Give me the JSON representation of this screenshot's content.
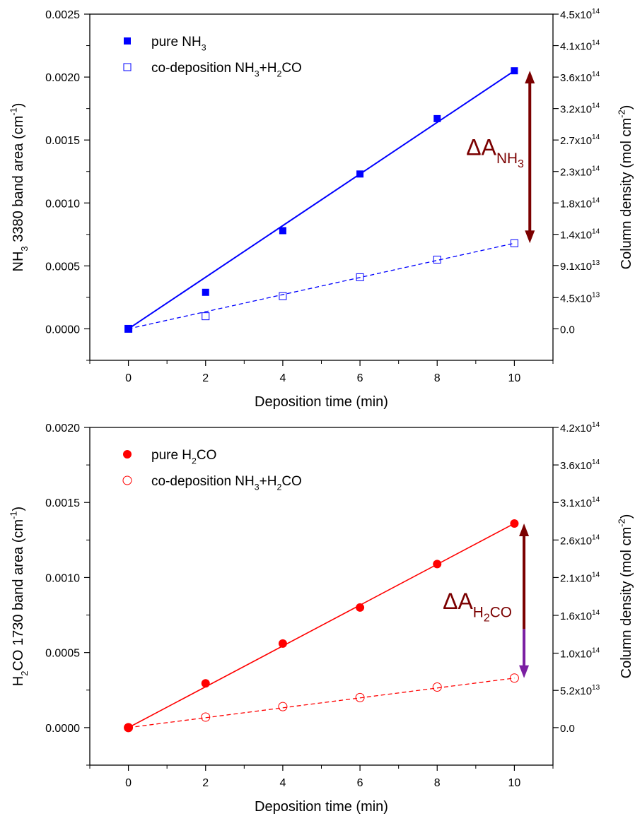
{
  "chart_data": [
    {
      "type": "scatter",
      "xlabel": "Deposition time (min)",
      "ylabel": "NH3 3380 band area (cm-1)",
      "ylabel_parts": [
        {
          "t": "NH",
          "s": "n"
        },
        {
          "t": "3",
          "s": "sub"
        },
        {
          "t": " 3380 band area (cm",
          "s": "n"
        },
        {
          "t": "-1",
          "s": "sup"
        },
        {
          "t": ")",
          "s": "n"
        }
      ],
      "y2label": "Column density (mol cm-2)",
      "y2label_parts": [
        {
          "t": "Column density (mol cm",
          "s": "n"
        },
        {
          "t": "-2",
          "s": "sup"
        },
        {
          "t": ")",
          "s": "n"
        }
      ],
      "xlim": [
        -1,
        11
      ],
      "ylim": [
        -0.00025,
        0.0025
      ],
      "xticks": [
        0,
        2,
        4,
        6,
        8,
        10
      ],
      "xtick_labels": [
        "0",
        "2",
        "4",
        "6",
        "8",
        "10"
      ],
      "yticks": [
        0,
        0.0005,
        0.001,
        0.0015,
        0.002,
        0.0025
      ],
      "ytick_labels": [
        "0.0000",
        "0.0005",
        "0.0010",
        "0.0015",
        "0.0020",
        "0.0025"
      ],
      "y2ticks": [
        {
          "value": 0,
          "mant": "0.0",
          "exp": ""
        },
        {
          "value": 0.000248,
          "mant": "4.5x10",
          "exp": "13"
        },
        {
          "value": 0.000503,
          "mant": "9.1x10",
          "exp": "13"
        },
        {
          "value": 0.000751,
          "mant": "1.4x10",
          "exp": "14"
        },
        {
          "value": 0.001,
          "mant": "1.8x10",
          "exp": "14"
        },
        {
          "value": 0.00125,
          "mant": "2.3x10",
          "exp": "14"
        },
        {
          "value": 0.0015,
          "mant": "2.7x10",
          "exp": "14"
        },
        {
          "value": 0.00175,
          "mant": "3.2x10",
          "exp": "14"
        },
        {
          "value": 0.002,
          "mant": "3.6x10",
          "exp": "14"
        },
        {
          "value": 0.00225,
          "mant": "4.1x10",
          "exp": "14"
        },
        {
          "value": 0.0025,
          "mant": "4.5x10",
          "exp": "14"
        }
      ],
      "legend_position": "top-left",
      "series": [
        {
          "name": "pure NH3",
          "name_parts": [
            {
              "t": "pure NH",
              "s": "n"
            },
            {
              "t": "3",
              "s": "sub"
            }
          ],
          "marker": "square-filled",
          "color": "#0000ff",
          "x": [
            0,
            2,
            4,
            6,
            8,
            10
          ],
          "y": [
            0.0,
            0.00029,
            0.00078,
            0.00123,
            0.00167,
            0.00205
          ],
          "fit": {
            "style": "solid",
            "x": [
              0,
              10
            ],
            "y": [
              0.0,
              0.00205
            ]
          }
        },
        {
          "name": "co-deposition NH3+H2CO",
          "name_parts": [
            {
              "t": "co-deposition NH",
              "s": "n"
            },
            {
              "t": "3",
              "s": "sub"
            },
            {
              "t": "+H",
              "s": "n"
            },
            {
              "t": "2",
              "s": "sub"
            },
            {
              "t": "CO",
              "s": "n"
            }
          ],
          "marker": "square-open",
          "color": "#0000ff",
          "x": [
            0,
            2,
            4,
            6,
            8,
            10
          ],
          "y": [
            0.0,
            0.0001,
            0.00026,
            0.00041,
            0.00055,
            0.00068
          ],
          "fit": {
            "style": "dashed",
            "x": [
              0,
              10
            ],
            "y": [
              0.0,
              0.00068
            ]
          }
        }
      ],
      "annotation": {
        "text": "ΔA NH3",
        "parts": [
          {
            "t": "ΔA",
            "s": "n"
          },
          {
            "t": "NH",
            "s": "sub"
          },
          {
            "t": "3",
            "s": "subsub"
          }
        ],
        "color": "#7b0000",
        "x": 10.4,
        "arrow_from": 0.00205,
        "arrow_to": 0.00068
      }
    },
    {
      "type": "scatter",
      "xlabel": "Deposition time (min)",
      "ylabel": "H2CO 1730 band area (cm-1)",
      "ylabel_parts": [
        {
          "t": "H",
          "s": "n"
        },
        {
          "t": "2",
          "s": "sub"
        },
        {
          "t": "CO 1730 band area (cm",
          "s": "n"
        },
        {
          "t": "-1",
          "s": "sup"
        },
        {
          "t": ")",
          "s": "n"
        }
      ],
      "y2label": "Column density (mol cm-2)",
      "y2label_parts": [
        {
          "t": "Column density (mol cm",
          "s": "n"
        },
        {
          "t": "-2",
          "s": "sup"
        },
        {
          "t": ")",
          "s": "n"
        }
      ],
      "xlim": [
        -1,
        11
      ],
      "ylim": [
        -0.00025,
        0.002
      ],
      "xticks": [
        0,
        2,
        4,
        6,
        8,
        10
      ],
      "xtick_labels": [
        "0",
        "2",
        "4",
        "6",
        "8",
        "10"
      ],
      "yticks": [
        0,
        0.0005,
        0.001,
        0.0015,
        0.002
      ],
      "ytick_labels": [
        "0.0000",
        "0.0005",
        "0.0010",
        "0.0015",
        "0.0020"
      ],
      "y2ticks": [
        {
          "value": 0,
          "mant": "0.0",
          "exp": ""
        },
        {
          "value": 0.000248,
          "mant": "5.2x10",
          "exp": "13"
        },
        {
          "value": 0.000496,
          "mant": "1.0x10",
          "exp": "14"
        },
        {
          "value": 0.000748,
          "mant": "1.6x10",
          "exp": "14"
        },
        {
          "value": 0.001,
          "mant": "2.1x10",
          "exp": "14"
        },
        {
          "value": 0.00125,
          "mant": "2.6x10",
          "exp": "14"
        },
        {
          "value": 0.0015,
          "mant": "3.1x10",
          "exp": "14"
        },
        {
          "value": 0.00175,
          "mant": "3.6x10",
          "exp": "14"
        },
        {
          "value": 0.002,
          "mant": "4.2x10",
          "exp": "14"
        }
      ],
      "legend_position": "top-left",
      "series": [
        {
          "name": "pure H2CO",
          "name_parts": [
            {
              "t": "pure H",
              "s": "n"
            },
            {
              "t": "2",
              "s": "sub"
            },
            {
              "t": "CO",
              "s": "n"
            }
          ],
          "marker": "circle-filled",
          "color": "#ff0000",
          "x": [
            0,
            2,
            4,
            6,
            8,
            10
          ],
          "y": [
            0.0,
            0.000295,
            0.00056,
            0.0008,
            0.00109,
            0.00136
          ],
          "fit": {
            "style": "solid",
            "x": [
              0,
              10
            ],
            "y": [
              0.0,
              0.00136
            ]
          }
        },
        {
          "name": "co-deposition NH3+H2CO",
          "name_parts": [
            {
              "t": "co-deposition NH",
              "s": "n"
            },
            {
              "t": "3",
              "s": "sub"
            },
            {
              "t": "+H",
              "s": "n"
            },
            {
              "t": "2",
              "s": "sub"
            },
            {
              "t": "CO",
              "s": "n"
            }
          ],
          "marker": "circle-open",
          "color": "#ff0000",
          "x": [
            0,
            2,
            4,
            6,
            8,
            10
          ],
          "y": [
            0.0,
            7e-05,
            0.00014,
            0.0002,
            0.00027,
            0.00033
          ],
          "fit": {
            "style": "dashed",
            "x": [
              0,
              10
            ],
            "y": [
              0.0,
              0.00033
            ]
          }
        }
      ],
      "annotation": {
        "text": "ΔA H2CO",
        "parts": [
          {
            "t": "ΔA",
            "s": "n"
          },
          {
            "t": "H",
            "s": "sub"
          },
          {
            "t": "2",
            "s": "subsub"
          },
          {
            "t": "CO",
            "s": "sub"
          }
        ],
        "color": "#7b0000",
        "x": 10.25,
        "arrow_from": 0.00136,
        "arrow_to": 0.00033,
        "arrow_tip_color": "#7b1fa2"
      }
    }
  ]
}
